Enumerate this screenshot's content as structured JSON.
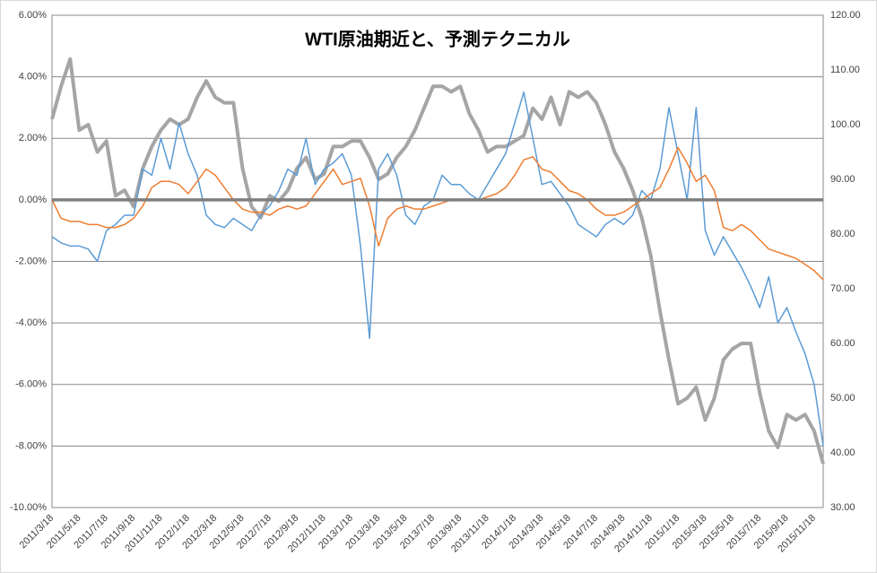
{
  "chart_data": {
    "type": "line",
    "title": "WTI原油期近と、予測テクニカル",
    "categories": [
      "2011/3/18",
      null,
      null,
      "2011/5/18",
      null,
      null,
      "2011/7/18",
      null,
      null,
      "2011/9/18",
      null,
      null,
      "2011/11/18",
      null,
      null,
      "2012/1/18",
      null,
      null,
      "2012/3/18",
      null,
      null,
      "2012/5/18",
      null,
      null,
      "2012/7/18",
      null,
      null,
      "2012/9/18",
      null,
      null,
      "2012/11/18",
      null,
      null,
      "2013/1/18",
      null,
      null,
      "2013/3/18",
      null,
      null,
      "2013/5/18",
      null,
      null,
      "2013/7/18",
      null,
      null,
      "2013/9/18",
      null,
      null,
      "2013/11/18",
      null,
      null,
      "2014/1/18",
      null,
      null,
      "2014/3/18",
      null,
      null,
      "2014/5/18",
      null,
      null,
      "2014/7/18",
      null,
      null,
      "2014/9/18",
      null,
      null,
      "2014/11/18",
      null,
      null,
      "2015/1/18",
      null,
      null,
      "2015/3/18",
      null,
      null,
      "2015/5/18",
      null,
      null,
      "2015/7/18",
      null,
      null,
      "2015/9/18",
      null,
      null,
      "2015/11/18",
      null
    ],
    "series": [
      {
        "color": "#a5a5a5",
        "axis": "y2",
        "values": [
          101,
          107,
          112,
          99,
          100,
          95,
          97,
          87,
          88,
          85,
          92,
          96,
          99,
          101,
          100,
          101,
          105,
          108,
          105,
          104,
          104,
          92,
          85,
          83,
          87,
          86,
          88,
          92,
          94,
          90,
          91,
          96,
          96,
          97,
          97,
          94,
          90,
          91,
          94,
          96,
          99,
          103,
          107,
          107,
          106,
          107,
          102,
          99,
          95,
          96,
          96,
          97,
          98,
          103,
          101,
          105,
          100,
          106,
          105,
          106,
          104,
          100,
          95,
          92,
          88,
          83,
          76,
          66,
          57,
          49,
          50,
          52,
          46,
          50,
          57,
          59,
          60,
          60,
          51,
          44,
          41,
          47,
          46,
          47,
          44,
          38
        ]
      },
      {
        "color": "#5b9bd5",
        "values": [
          -1.2,
          -1.4,
          -1.5,
          -1.5,
          -1.6,
          -2.0,
          -1.0,
          -0.8,
          -0.5,
          -0.5,
          1.0,
          0.8,
          2.0,
          1.0,
          2.5,
          1.5,
          0.8,
          -0.5,
          -0.8,
          -0.9,
          -0.6,
          -0.8,
          -1.0,
          -0.5,
          -0.2,
          0.3,
          1.0,
          0.8,
          2.0,
          0.5,
          1.0,
          1.2,
          1.5,
          0.8,
          -1.5,
          -4.5,
          1.0,
          1.5,
          0.8,
          -0.5,
          -0.8,
          -0.2,
          0.0,
          0.8,
          0.5,
          0.5,
          0.2,
          0.0,
          0.5,
          1.0,
          1.5,
          2.5,
          3.5,
          2.0,
          0.5,
          0.6,
          0.2,
          -0.2,
          -0.8,
          -1.0,
          -1.2,
          -0.8,
          -0.6,
          -0.8,
          -0.5,
          0.3,
          0.0,
          1.0,
          3.0,
          1.5,
          0.0,
          3.0,
          -1.0,
          -1.8,
          -1.2,
          -1.7,
          -2.2,
          -2.8,
          -3.5,
          -2.5,
          -4.0,
          -3.5,
          -4.3,
          -5.0,
          -6.0,
          -8.0
        ]
      },
      {
        "color": "#ed7d31",
        "values": [
          0,
          -0.6,
          -0.7,
          -0.7,
          -0.8,
          -0.8,
          -0.9,
          -0.9,
          -0.8,
          -0.6,
          -0.2,
          0.4,
          0.6,
          0.6,
          0.5,
          0.2,
          0.6,
          1.0,
          0.8,
          0.4,
          0.0,
          -0.3,
          -0.4,
          -0.4,
          -0.5,
          -0.3,
          -0.2,
          -0.3,
          -0.2,
          0.2,
          0.6,
          1.0,
          0.5,
          0.6,
          0.7,
          -0.2,
          -1.5,
          -0.6,
          -0.3,
          -0.2,
          -0.3,
          -0.3,
          -0.2,
          -0.1,
          0.0,
          0.0,
          0.0,
          0.0,
          0.1,
          0.2,
          0.4,
          0.8,
          1.3,
          1.4,
          1.0,
          0.9,
          0.6,
          0.3,
          0.2,
          0.0,
          -0.3,
          -0.5,
          -0.5,
          -0.4,
          -0.2,
          0.0,
          0.2,
          0.4,
          1.0,
          1.7,
          1.2,
          0.6,
          0.8,
          0.3,
          -0.9,
          -1.0,
          -0.8,
          -1.0,
          -1.3,
          -1.6,
          -1.7,
          -1.8,
          -1.9,
          -2.1,
          -2.3,
          -2.6
        ]
      }
    ],
    "ylim": [
      -10,
      6
    ],
    "yticks": [
      {
        "value": -10,
        "label": "-10.00%"
      },
      {
        "value": -8,
        "label": "-8.00%"
      },
      {
        "value": -6,
        "label": "-6.00%"
      },
      {
        "value": -4,
        "label": "-4.00%"
      },
      {
        "value": -2,
        "label": "-2.00%"
      },
      {
        "value": 0,
        "label": "0.00%"
      },
      {
        "value": 2,
        "label": "2.00%"
      },
      {
        "value": 4,
        "label": "4.00%"
      },
      {
        "value": 6,
        "label": "6.00%"
      }
    ],
    "y2lim": [
      30,
      120
    ],
    "y2ticks": [
      {
        "value": 30,
        "label": "30.00"
      },
      {
        "value": 40,
        "label": "40.00"
      },
      {
        "value": 50,
        "label": "50.00"
      },
      {
        "value": 60,
        "label": "60.00"
      },
      {
        "value": 70,
        "label": "70.00"
      },
      {
        "value": 80,
        "label": "80.00"
      },
      {
        "value": 90,
        "label": "90.00"
      },
      {
        "value": 100,
        "label": "100.00"
      },
      {
        "value": 110,
        "label": "110.00"
      },
      {
        "value": 120,
        "label": "120.00"
      }
    ],
    "grid": true
  }
}
